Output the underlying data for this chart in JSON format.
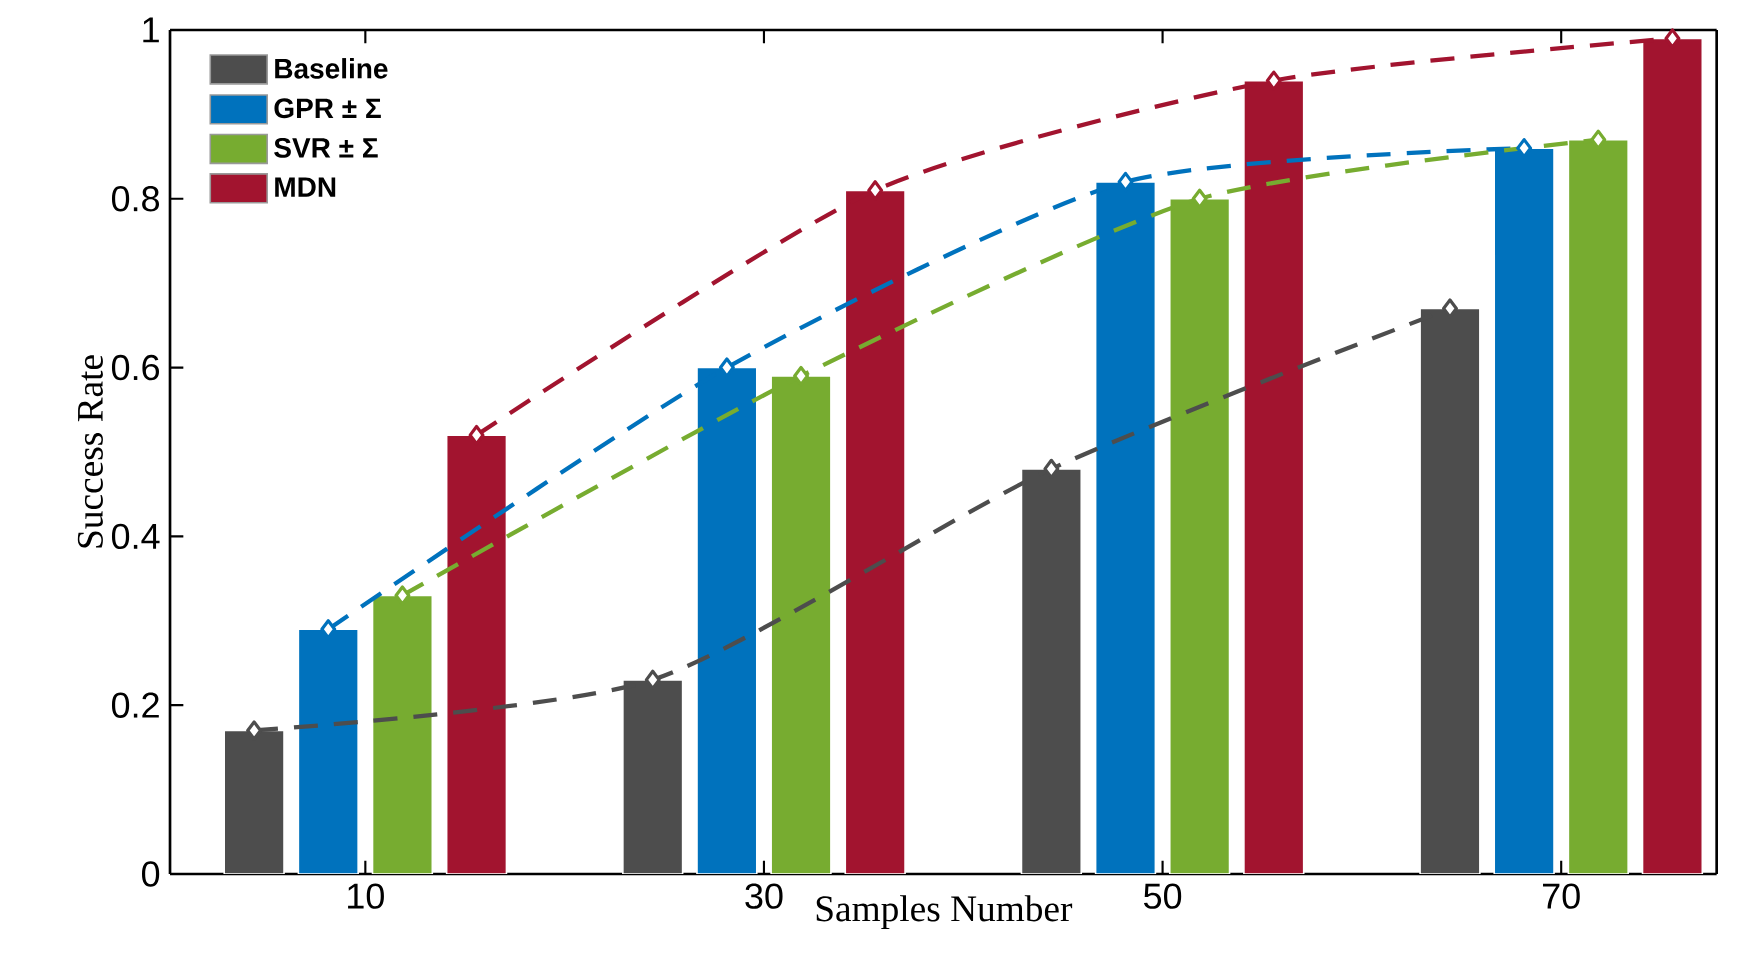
{
  "chart_data": {
    "type": "bar",
    "xlabel": "Samples Number",
    "ylabel": "Success Rate",
    "categories": [
      "10",
      "30",
      "50",
      "70"
    ],
    "ylim": [
      0,
      1
    ],
    "yticks": [
      0,
      0.2,
      0.4,
      0.6,
      0.8,
      1
    ],
    "legend": "top left",
    "series": [
      {
        "name": "Baseline",
        "color": "#4d4d4d",
        "values": [
          0.17,
          0.23,
          0.48,
          0.67
        ]
      },
      {
        "name": "GPR ± Σ",
        "color": "#0072bd",
        "values": [
          0.29,
          0.6,
          0.82,
          0.86
        ]
      },
      {
        "name": "SVR ± Σ",
        "color": "#77ac30",
        "values": [
          0.33,
          0.59,
          0.8,
          0.87
        ]
      },
      {
        "name": "MDN",
        "color": "#a2142f",
        "values": [
          0.52,
          0.81,
          0.94,
          0.99
        ]
      },
      {
        "type": "line",
        "color": "#4d4d4d",
        "x": [
          "10",
          "30",
          "50",
          "70"
        ],
        "values": [
          0.17,
          0.23,
          0.48,
          0.67
        ],
        "line_style": "dashed",
        "marker": "diamond"
      },
      {
        "type": "line",
        "color": "#0072bd",
        "x": [
          "10",
          "30",
          "50",
          "70"
        ],
        "values": [
          0.29,
          0.6,
          0.82,
          0.86
        ],
        "line_style": "dashed",
        "marker": "diamond"
      },
      {
        "type": "line",
        "color": "#77ac30",
        "x": [
          "10",
          "30",
          "50",
          "70"
        ],
        "values": [
          0.33,
          0.59,
          0.8,
          0.87
        ],
        "line_style": "dashed",
        "marker": "diamond"
      },
      {
        "type": "line",
        "color": "#a2142f",
        "x": [
          "10",
          "30",
          "50",
          "70"
        ],
        "values": [
          0.52,
          0.81,
          0.94,
          0.99
        ],
        "line_style": "dashed",
        "marker": "diamond"
      }
    ]
  }
}
